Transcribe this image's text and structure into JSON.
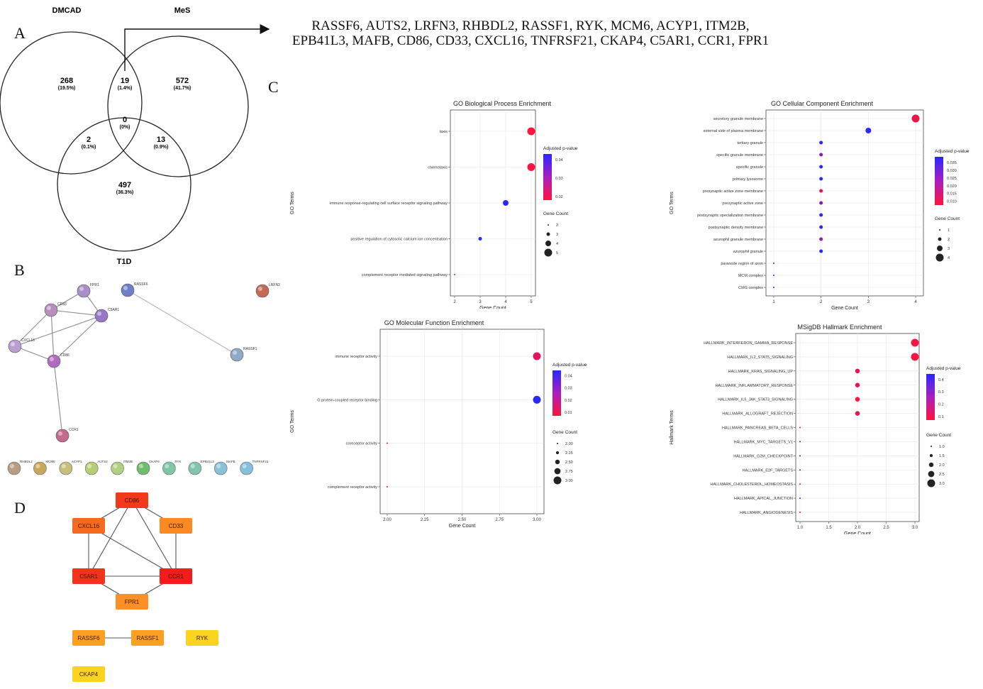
{
  "panel_labels": {
    "a": "A",
    "b": "B",
    "c": "C",
    "d": "D"
  },
  "venn": {
    "set1": "DMCAD",
    "set2": "MeS",
    "set3": "T1D",
    "regions": {
      "only1": {
        "n": "268",
        "p": "(19.5%)"
      },
      "r12": {
        "n": "19",
        "p": "(1.4%)"
      },
      "only2": {
        "n": "572",
        "p": "(41.7%)"
      },
      "r123": {
        "n": "0",
        "p": "(0%)"
      },
      "r13": {
        "n": "2",
        "p": "(0.1%)"
      },
      "r23": {
        "n": "13",
        "p": "(0.9%)"
      },
      "only3": {
        "n": "497",
        "p": "(36.3%)"
      }
    }
  },
  "gene_list": {
    "line1": "RASSF6, AUTS2, LRFN3, RHBDL2, RASSF1, RYK, MCM6, ACYP1, ITM2B,",
    "line2": "EPB41L3, MAFB, CD86, CD33, CXCL16, TNFRSF21, CKAP4, C5AR1, CCR1, FPR1"
  },
  "ppi_network": {
    "nodes": [
      {
        "label": "FPR1",
        "color": "#a98fc9"
      },
      {
        "label": "RASSF6",
        "color": "#6f80c8"
      },
      {
        "label": "LRFN3",
        "color": "#c46b58"
      },
      {
        "label": "CD33",
        "color": "#b78fbf"
      },
      {
        "label": "C5AR1",
        "color": "#9a76c9"
      },
      {
        "label": "CXCL16",
        "color": "#b9a0d0"
      },
      {
        "label": "CD86",
        "color": "#b06cc0"
      },
      {
        "label": "RASSF1",
        "color": "#8fa9c6"
      },
      {
        "label": "CCR1",
        "color": "#c46a8a"
      }
    ],
    "singletons": [
      {
        "label": "RHBDL2",
        "color": "#b79e83"
      },
      {
        "label": "MCM6",
        "color": "#c9a85c"
      },
      {
        "label": "ACYP1",
        "color": "#c6c07c"
      },
      {
        "label": "AUTS2",
        "color": "#b6cf74"
      },
      {
        "label": "ITM2B",
        "color": "#aed07f"
      },
      {
        "label": "CKAP4",
        "color": "#6fbe6a"
      },
      {
        "label": "RYK",
        "color": "#7fc7a2"
      },
      {
        "label": "EPB41L3",
        "color": "#83c4b0"
      },
      {
        "label": "MAFB",
        "color": "#8bc1d6"
      },
      {
        "label": "TNFRSF21",
        "color": "#86bfdc"
      }
    ]
  },
  "hub_network": {
    "nodes": [
      {
        "label": "CD86",
        "color": "#f2391a"
      },
      {
        "label": "CXCL16",
        "color": "#f46a1f"
      },
      {
        "label": "CD33",
        "color": "#fb8a22"
      },
      {
        "label": "C5AR1",
        "color": "#f3321c"
      },
      {
        "label": "CCR1",
        "color": "#f41c1a"
      },
      {
        "label": "FPR1",
        "color": "#fc8f26"
      },
      {
        "label": "RASSF6",
        "color": "#fd9f22"
      },
      {
        "label": "RASSF1",
        "color": "#fd9f22"
      },
      {
        "label": "RYK",
        "color": "#fbd422"
      },
      {
        "label": "CKAP4",
        "color": "#fbd422"
      }
    ]
  },
  "chart_data": [
    {
      "type": "scatter",
      "title": "GO Biological Process Enrichment",
      "xlabel": "Gene Count",
      "ylabel": "GO Terms",
      "categories": [
        "taxis",
        "chemotaxis",
        "immune response-regulating cell surface receptor signaling pathway",
        "positive regulation of cytosolic calcium ion concentration",
        "complement receptor mediated signaling pathway"
      ],
      "x": [
        5,
        5,
        4,
        3,
        2
      ],
      "padj": [
        0.012,
        0.013,
        0.05,
        0.05,
        0.012
      ],
      "xlim": [
        2,
        5
      ],
      "xticks": [
        "2",
        "3",
        "4",
        "5"
      ],
      "color_legend": {
        "title": "Adjusted p-value",
        "ticks": [
          "0.04",
          "0.03",
          "0.02"
        ],
        "range": [
          0.012,
          0.05
        ]
      },
      "size_legend": {
        "title": "Gene Count",
        "ticks": [
          "2",
          "3",
          "4",
          "5"
        ],
        "values": [
          2,
          3,
          4,
          5
        ]
      }
    },
    {
      "type": "scatter",
      "title": "GO Cellular Component Enrichment",
      "xlabel": "Gene Count",
      "ylabel": "GO Terms",
      "categories": [
        "secretory granule membrane",
        "external side of plasma membrane",
        "tertiary granule",
        "specific granule membrane",
        "specific granule",
        "primary lysosome",
        "presynaptic active zone membrane",
        "presynaptic active zone",
        "postsynaptic specialization membrane",
        "postsynaptic density membrane",
        "azurophil granule membrane",
        "azurophil granule",
        "paranode region of axon",
        "MCM complex",
        "CMG complex"
      ],
      "x": [
        4,
        3,
        2,
        2,
        2,
        2,
        2,
        2,
        2,
        2,
        2,
        2,
        1,
        1,
        1
      ],
      "padj": [
        0.01,
        0.037,
        0.037,
        0.025,
        0.037,
        0.037,
        0.01,
        0.025,
        0.037,
        0.037,
        0.022,
        0.037,
        0.037,
        0.037,
        0.037
      ],
      "xlim": [
        1,
        4
      ],
      "xticks": [
        "1",
        "2",
        "3",
        "4"
      ],
      "color_legend": {
        "title": "Adjusted p-value",
        "ticks": [
          "0.035",
          "0.030",
          "0.025",
          "0.020",
          "0.015",
          "0.010"
        ],
        "range": [
          0.008,
          0.037
        ]
      },
      "size_legend": {
        "title": "Gene Count",
        "ticks": [
          "1",
          "2",
          "3",
          "4"
        ],
        "values": [
          1,
          2,
          3,
          4
        ]
      }
    },
    {
      "type": "scatter",
      "title": "GO Molecular Function Enrichment",
      "xlabel": "Gene Count",
      "ylabel": "GO Terms",
      "categories": [
        "immune receptor activity",
        "G protein-coupled receptor binding",
        "coreceptor activity",
        "complement receptor activity"
      ],
      "x": [
        3,
        3,
        2,
        2
      ],
      "padj": [
        0.012,
        0.05,
        0.012,
        0.012
      ],
      "xlim": [
        2,
        3
      ],
      "xticks": [
        "2.00",
        "2.25",
        "2.50",
        "2.75",
        "3.00"
      ],
      "color_legend": {
        "title": "Adjusted p-value",
        "ticks": [
          "0.04",
          "0.03",
          "0.02",
          "0.01"
        ],
        "range": [
          0.005,
          0.048
        ]
      },
      "size_legend": {
        "title": "Gene Count",
        "ticks": [
          "2.00",
          "2.25",
          "2.50",
          "2.75",
          "3.00"
        ],
        "values": [
          2,
          2.25,
          2.5,
          2.75,
          3
        ]
      }
    },
    {
      "type": "scatter",
      "title": "MSigDB Hallmark Enrichment",
      "xlabel": "Gene Count",
      "ylabel": "Hallmark Terms",
      "categories": [
        "HALLMARK_INTERFERON_GAMMA_RESPONSE",
        "HALLMARK_IL2_STAT5_SIGNALING",
        "HALLMARK_KRAS_SIGNALING_UP",
        "HALLMARK_INFLAMMATORY_RESPONSE",
        "HALLMARK_IL6_JAK_STAT3_SIGNALING",
        "HALLMARK_ALLOGRAFT_REJECTION",
        "HALLMARK_PANCREAS_BETA_CELLS",
        "HALLMARK_MYC_TARGETS_V1",
        "HALLMARK_G2M_CHECKPOINT",
        "HALLMARK_E2F_TARGETS",
        "HALLMARK_CHOLESTEROL_HOMEOSTASIS",
        "HALLMARK_APICAL_JUNCTION",
        "HALLMARK_ANGIOGENESIS"
      ],
      "x": [
        3,
        3,
        2,
        2,
        2,
        2,
        1,
        1,
        1,
        1,
        1,
        1,
        1
      ],
      "padj": [
        0.06,
        0.06,
        0.1,
        0.1,
        0.07,
        0.1,
        0.12,
        0.43,
        0.43,
        0.43,
        0.15,
        0.43,
        0.15
      ],
      "xlim": [
        1,
        3
      ],
      "xticks": [
        "1.0",
        "1.5",
        "2.0",
        "2.5",
        "3.0"
      ],
      "color_legend": {
        "title": "Adjusted p-value",
        "ticks": [
          "0.4",
          "0.3",
          "0.2",
          "0.1"
        ],
        "range": [
          0.05,
          0.43
        ]
      },
      "size_legend": {
        "title": "Gene Count",
        "ticks": [
          "1.0",
          "1.5",
          "2.0",
          "2.5",
          "3.0"
        ],
        "values": [
          1,
          1.5,
          2,
          2.5,
          3
        ]
      }
    }
  ]
}
